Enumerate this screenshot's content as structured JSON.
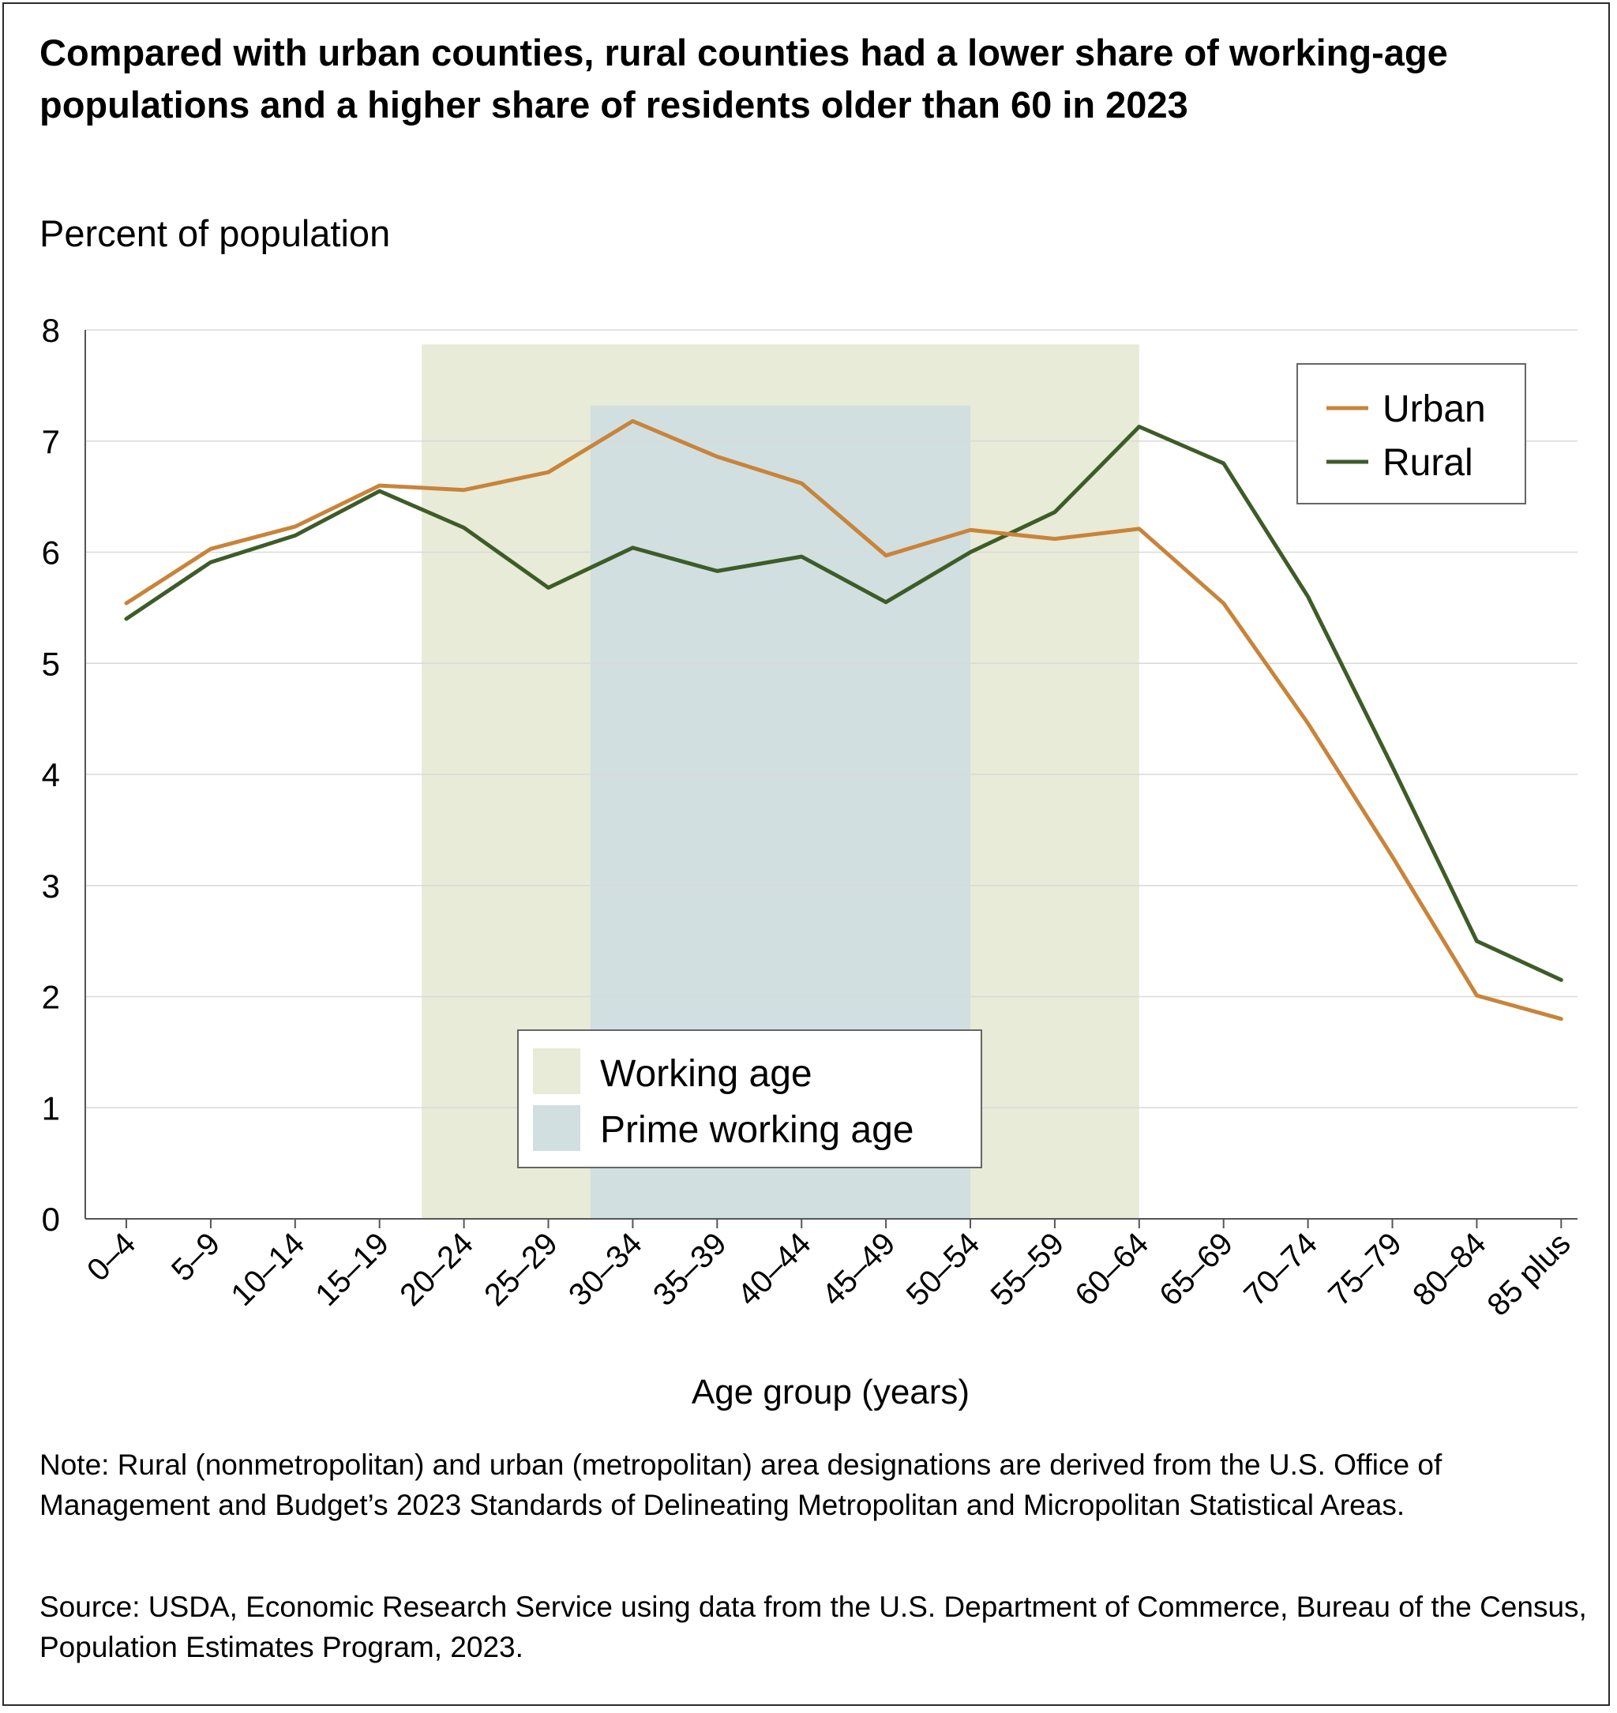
{
  "title": "Compared with urban counties, rural counties had a lower share of working-age populations and a higher share of residents older than 60 in 2023",
  "note": "Note: Rural (nonmetropolitan) and urban (metropolitan) area designations are derived from the U.S. Office of Management and Budget’s 2023 Standards of Delineating Metropolitan and Micropolitan Statistical Areas.",
  "source": "Source: USDA, Economic Research Service using data from the U.S. Department of Commerce, Bureau of the Census, Population Estimates Program, 2023.",
  "colors": {
    "urban": "#c8843a",
    "rural": "#3d5c28",
    "working_age": "#e7ebd7",
    "prime_working_age": "#d1dfe0",
    "grid": "#d9d9d9",
    "axis": "#555555"
  },
  "chart_data": {
    "type": "line",
    "title": "Compared with urban counties, rural counties had a lower share of working-age populations and a higher share of residents older than 60 in 2023",
    "ylabel": "Percent of population",
    "xlabel": "Age group (years)",
    "ylim": [
      0,
      8
    ],
    "yticks": [
      0,
      1,
      2,
      3,
      4,
      5,
      6,
      7,
      8
    ],
    "grid": true,
    "legend_position": "top-right",
    "categories": [
      "0–4",
      "5–9",
      "10–14",
      "15–19",
      "20–24",
      "25–29",
      "30–34",
      "35–39",
      "40–44",
      "45–49",
      "50–54",
      "55–59",
      "60–64",
      "65–69",
      "70–74",
      "75–79",
      "80–84",
      "85 plus"
    ],
    "series": [
      {
        "name": "Urban",
        "color": "#c8843a",
        "values": [
          5.54,
          6.03,
          6.23,
          6.6,
          6.56,
          6.72,
          7.18,
          6.86,
          6.62,
          5.97,
          6.2,
          6.12,
          6.21,
          5.54,
          4.46,
          3.26,
          2.01,
          1.8
        ]
      },
      {
        "name": "Rural",
        "color": "#3d5c28",
        "values": [
          5.4,
          5.91,
          6.15,
          6.55,
          6.22,
          5.68,
          6.04,
          5.83,
          5.96,
          5.55,
          6.0,
          6.36,
          7.13,
          6.8,
          5.6,
          4.07,
          2.5,
          2.15
        ]
      }
    ],
    "shaded_regions": [
      {
        "label": "Working age",
        "from": "15–19",
        "to": "60–64",
        "top": 7.87,
        "color": "#e7ebd7"
      },
      {
        "label": "Prime working age",
        "from": "25–29",
        "to": "50–54",
        "top": 7.32,
        "color": "#d1dfe0"
      }
    ]
  }
}
